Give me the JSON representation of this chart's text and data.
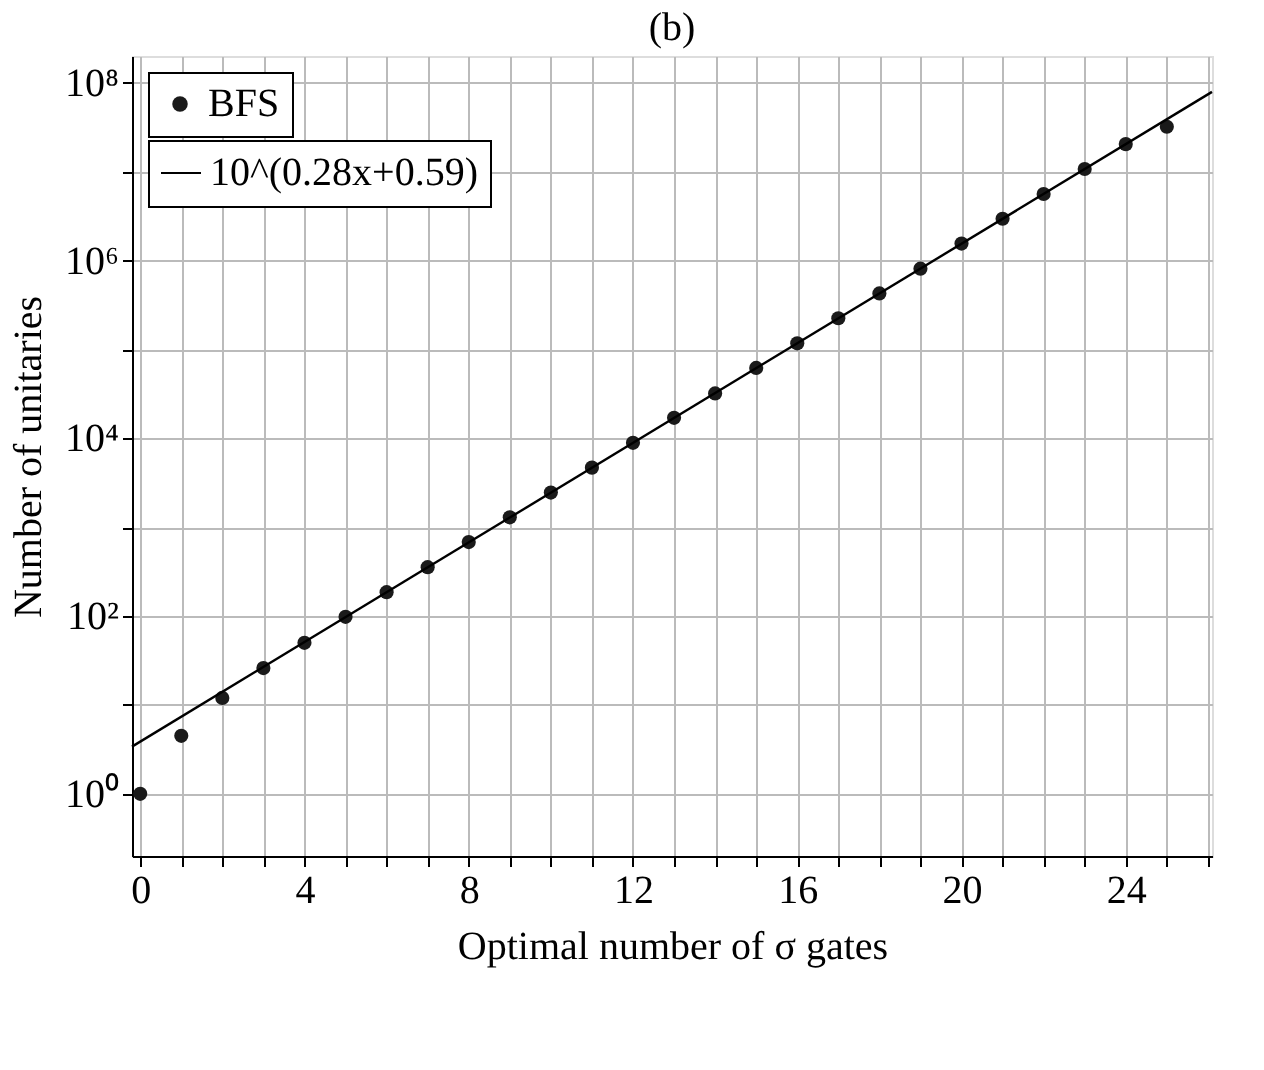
{
  "chart_data": {
    "type": "scatter",
    "title": "(b)",
    "xlabel": "Optimal number of σ gates",
    "ylabel": "Number of unitaries",
    "x": [
      0,
      1,
      2,
      3,
      4,
      5,
      6,
      7,
      8,
      9,
      10,
      11,
      12,
      13,
      14,
      15,
      16,
      17,
      18,
      19,
      20,
      21,
      22,
      23,
      24,
      25
    ],
    "series": [
      {
        "name": "BFS",
        "type": "scatter",
        "color": "#1a1a1a",
        "marker": "circle",
        "values": [
          1,
          4.5,
          12,
          26,
          50,
          98,
          186,
          355,
          680,
          1290,
          2450,
          4680,
          8900,
          17000,
          32000,
          62000,
          117000,
          224000,
          427000,
          810000,
          1550000,
          2950000,
          5600000,
          10700000,
          20400000,
          32000000
        ]
      },
      {
        "name": "10^(0.28x+0.59)",
        "type": "line",
        "color": "#000000",
        "line_style": "solid",
        "x": [
          -0.2,
          26.1
        ],
        "values": [
          3.4,
          79000000
        ]
      }
    ],
    "log": "y",
    "xlim": [
      -0.2,
      26.1
    ],
    "ylim": [
      0.2,
      200000000
    ],
    "xticks": [
      0,
      {
        "value": 1,
        "label": null
      },
      {
        "value": 2,
        "label": null
      },
      {
        "value": 3,
        "label": null
      },
      4,
      {
        "value": 5,
        "label": null
      },
      {
        "value": 6,
        "label": null
      },
      {
        "value": 7,
        "label": null
      },
      8,
      {
        "value": 9,
        "label": null
      },
      {
        "value": 10,
        "label": null
      },
      {
        "value": 11,
        "label": null
      },
      12,
      {
        "value": 13,
        "label": null
      },
      {
        "value": 14,
        "label": null
      },
      {
        "value": 15,
        "label": null
      },
      16,
      {
        "value": 17,
        "label": null
      },
      {
        "value": 18,
        "label": null
      },
      {
        "value": 19,
        "label": null
      },
      20,
      {
        "value": 21,
        "label": null
      },
      {
        "value": 22,
        "label": null
      },
      {
        "value": 23,
        "label": null
      },
      24,
      {
        "value": 25,
        "label": null
      },
      {
        "value": 26,
        "label": null
      }
    ],
    "yticks": [
      {
        "value": 1,
        "label": "10⁰"
      },
      {
        "value": 10,
        "label": null
      },
      {
        "value": 100,
        "label": "10²"
      },
      {
        "value": 1000,
        "label": null
      },
      {
        "value": 10000,
        "label": "10⁴"
      },
      {
        "value": 100000,
        "label": null
      },
      {
        "value": 1000000,
        "label": "10⁶"
      },
      {
        "value": 10000000,
        "label": null
      },
      {
        "value": 100000000,
        "label": "10⁸"
      }
    ],
    "grid": true,
    "legend": "top left"
  }
}
